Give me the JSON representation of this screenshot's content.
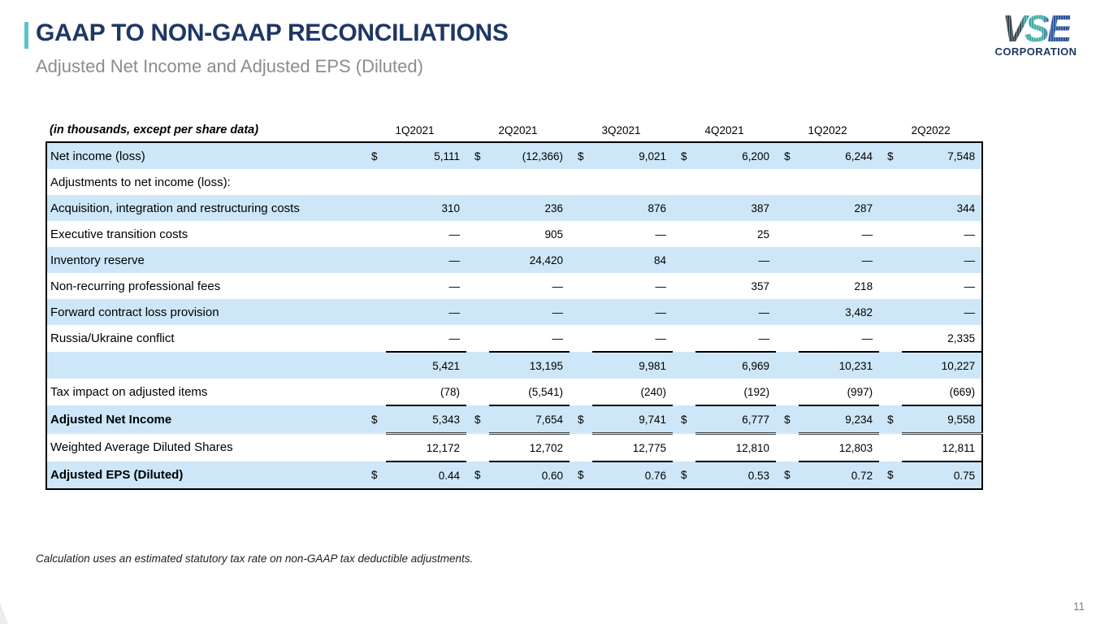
{
  "header": {
    "title": "GAAP TO NON-GAAP RECONCILIATIONS",
    "subtitle": "Adjusted Net Income and Adjusted EPS (Diluted)"
  },
  "logo": {
    "brand": "VSE",
    "subtext": "CORPORATION"
  },
  "table": {
    "units_label": "(in thousands, except per share data)",
    "dollar_sign": "$",
    "columns": [
      "1Q2021",
      "2Q2021",
      "3Q2021",
      "4Q2021",
      "1Q2022",
      "2Q2022"
    ],
    "rows": [
      {
        "label": "Net income (loss)",
        "shade": true,
        "bold": false,
        "dollar": true,
        "underline": "none",
        "values": [
          "5,111",
          "(12,366)",
          "9,021",
          "6,200",
          "6,244",
          "7,548"
        ]
      },
      {
        "label": "Adjustments to net income (loss):",
        "shade": false,
        "bold": false,
        "dollar": false,
        "underline": "none",
        "values": [
          "",
          "",
          "",
          "",
          "",
          ""
        ]
      },
      {
        "label": "Acquisition, integration and restructuring costs",
        "shade": true,
        "bold": false,
        "dollar": false,
        "underline": "none",
        "values": [
          "310",
          "236",
          "876",
          "387",
          "287",
          "344"
        ]
      },
      {
        "label": "Executive transition costs",
        "shade": false,
        "bold": false,
        "dollar": false,
        "underline": "none",
        "values": [
          "—",
          "905",
          "—",
          "25",
          "—",
          "—"
        ]
      },
      {
        "label": "Inventory reserve",
        "shade": true,
        "bold": false,
        "dollar": false,
        "underline": "none",
        "values": [
          "—",
          "24,420",
          "84",
          "—",
          "—",
          "—"
        ]
      },
      {
        "label": "Non-recurring professional fees",
        "shade": false,
        "bold": false,
        "dollar": false,
        "underline": "none",
        "values": [
          "—",
          "—",
          "—",
          "357",
          "218",
          "—"
        ]
      },
      {
        "label": "Forward contract loss provision",
        "shade": true,
        "bold": false,
        "dollar": false,
        "underline": "none",
        "values": [
          "—",
          "—",
          "—",
          "—",
          "3,482",
          "—"
        ]
      },
      {
        "label": "Russia/Ukraine conflict",
        "shade": false,
        "bold": false,
        "dollar": false,
        "underline": "single",
        "values": [
          "—",
          "—",
          "—",
          "—",
          "—",
          "2,335"
        ]
      },
      {
        "label": "",
        "shade": true,
        "bold": false,
        "dollar": false,
        "underline": "none",
        "values": [
          "5,421",
          "13,195",
          "9,981",
          "6,969",
          "10,231",
          "10,227"
        ]
      },
      {
        "label": "Tax impact on adjusted items",
        "shade": false,
        "bold": false,
        "dollar": false,
        "underline": "single",
        "values": [
          "(78)",
          "(5,541)",
          "(240)",
          "(192)",
          "(997)",
          "(669)"
        ]
      },
      {
        "label": "Adjusted Net Income",
        "shade": true,
        "bold": true,
        "dollar": true,
        "underline": "double",
        "values": [
          "5,343",
          "7,654",
          "9,741",
          "6,777",
          "9,234",
          "9,558"
        ]
      },
      {
        "label": "Weighted Average Diluted Shares",
        "shade": false,
        "bold": false,
        "dollar": false,
        "underline": "single",
        "values": [
          "12,172",
          "12,702",
          "12,775",
          "12,810",
          "12,803",
          "12,811"
        ]
      },
      {
        "label": "Adjusted EPS (Diluted)",
        "shade": true,
        "bold": true,
        "dollar": true,
        "underline": "none",
        "values": [
          "0.44",
          "0.60",
          "0.76",
          "0.53",
          "0.72",
          "0.75"
        ]
      }
    ]
  },
  "footnote": "Calculation uses an estimated statutory tax rate on non-GAAP tax deductible adjustments.",
  "page_number": "11",
  "colors": {
    "accent_teal": "#5CC3CF",
    "navy": "#1E3765",
    "row_highlight": "#CDE7F8",
    "subtitle_gray": "#8C8C8C"
  }
}
